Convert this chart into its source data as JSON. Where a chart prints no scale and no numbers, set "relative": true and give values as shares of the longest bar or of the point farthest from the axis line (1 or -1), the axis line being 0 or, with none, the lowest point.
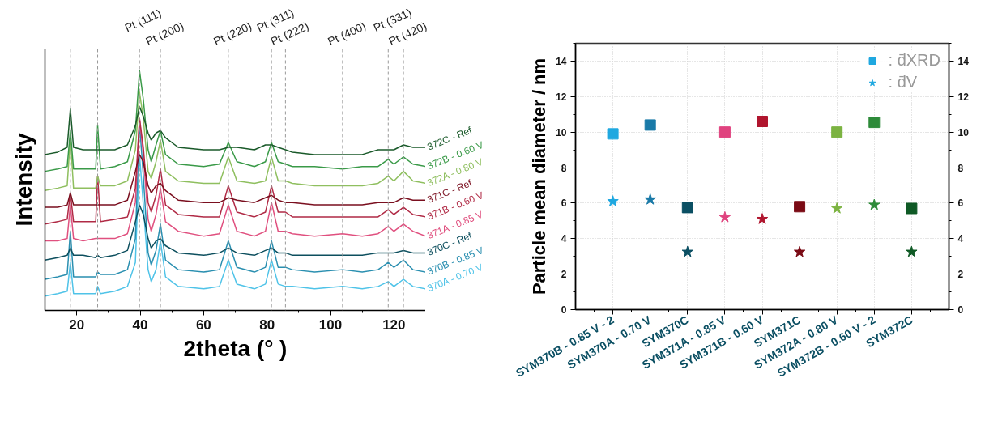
{
  "chart_data": [
    {
      "type": "line",
      "relative": true,
      "xlabel": "2theta (° )",
      "ylabel": "Intensity",
      "xlim": [
        10,
        130
      ],
      "xticks": [
        {
          "value": 10,
          "label": null
        },
        20,
        {
          "value": 30,
          "label": null
        },
        40,
        {
          "value": 50,
          "label": null
        },
        60,
        {
          "value": 70,
          "label": null
        },
        80,
        {
          "value": 90,
          "label": null
        },
        100,
        {
          "value": 110,
          "label": null
        },
        120,
        {
          "value": 130,
          "label": null
        }
      ],
      "grid": false,
      "x": [
        10,
        14,
        17,
        18,
        19,
        22,
        26,
        26.6,
        27.5,
        32,
        36,
        38.5,
        39.8,
        41,
        42.5,
        43.5,
        45,
        46.4,
        48,
        52,
        60,
        65,
        67.8,
        70.5,
        76,
        79.5,
        81.4,
        83.5,
        85.8,
        88,
        95,
        103.8,
        110,
        115,
        118.2,
        120,
        123,
        126,
        130
      ],
      "ref_lines": [
        {
          "axis": "x",
          "value": 18,
          "label": null,
          "color": "#999999",
          "line_style": "dashed"
        },
        {
          "axis": "x",
          "value": 26.6,
          "label": null,
          "color": "#999999",
          "line_style": "dashed"
        },
        {
          "axis": "x",
          "value": 39.8,
          "label": "Pt (111)",
          "color": "#999999",
          "line_style": "dashed"
        },
        {
          "axis": "x",
          "value": 46.4,
          "label": "Pt (200)",
          "color": "#999999",
          "line_style": "dashed"
        },
        {
          "axis": "x",
          "value": 67.8,
          "label": "Pt (220)",
          "color": "#999999",
          "line_style": "dashed"
        },
        {
          "axis": "x",
          "value": 81.4,
          "label": "Pt (311)",
          "color": "#999999",
          "line_style": "dashed"
        },
        {
          "axis": "x",
          "value": 85.8,
          "label": "Pt (222)",
          "color": "#999999",
          "line_style": "dashed"
        },
        {
          "axis": "x",
          "value": 103.8,
          "label": "Pt (400)",
          "color": "#999999",
          "line_style": "dashed"
        },
        {
          "axis": "x",
          "value": 118.2,
          "label": "Pt (331)",
          "color": "#999999",
          "line_style": "dashed"
        },
        {
          "axis": "x",
          "value": 123,
          "label": "Pt (420)",
          "color": "#999999",
          "line_style": "dashed"
        }
      ],
      "series": [
        {
          "name": "370A - 0.70 V",
          "color": "#4fc3e8",
          "values": [
            0.06,
            0.07,
            0.08,
            0.2,
            0.07,
            0.07,
            0.07,
            0.1,
            0.07,
            0.08,
            0.1,
            0.2,
            0.65,
            0.44,
            0.17,
            0.12,
            0.17,
            0.29,
            0.14,
            0.1,
            0.09,
            0.1,
            0.21,
            0.11,
            0.09,
            0.11,
            0.21,
            0.11,
            0.1,
            0.1,
            0.09,
            0.1,
            0.09,
            0.1,
            0.12,
            0.1,
            0.13,
            0.1,
            0.09
          ]
        },
        {
          "name": "370B - 0.85 V",
          "color": "#2a8fb0",
          "values": [
            0.13,
            0.14,
            0.15,
            0.33,
            0.14,
            0.14,
            0.14,
            0.16,
            0.15,
            0.15,
            0.17,
            0.3,
            0.78,
            0.56,
            0.24,
            0.19,
            0.25,
            0.36,
            0.21,
            0.17,
            0.16,
            0.17,
            0.29,
            0.18,
            0.16,
            0.18,
            0.29,
            0.18,
            0.18,
            0.17,
            0.16,
            0.17,
            0.16,
            0.17,
            0.2,
            0.18,
            0.21,
            0.17,
            0.16
          ]
        },
        {
          "name": "370C - Ref",
          "color": "#0d4f5e",
          "values": [
            0.21,
            0.22,
            0.23,
            0.26,
            0.23,
            0.23,
            0.22,
            0.23,
            0.22,
            0.23,
            0.25,
            0.37,
            0.44,
            0.4,
            0.3,
            0.26,
            0.29,
            0.3,
            0.27,
            0.24,
            0.23,
            0.24,
            0.26,
            0.24,
            0.23,
            0.25,
            0.26,
            0.24,
            0.24,
            0.23,
            0.23,
            0.23,
            0.23,
            0.24,
            0.24,
            0.24,
            0.25,
            0.24,
            0.24
          ]
        },
        {
          "name": "371A - 0.85 V",
          "color": "#e0507f",
          "values": [
            0.29,
            0.29,
            0.3,
            0.44,
            0.3,
            0.29,
            0.3,
            0.3,
            0.3,
            0.3,
            0.32,
            0.45,
            0.8,
            0.65,
            0.38,
            0.33,
            0.4,
            0.51,
            0.37,
            0.33,
            0.31,
            0.32,
            0.44,
            0.33,
            0.31,
            0.33,
            0.45,
            0.33,
            0.33,
            0.32,
            0.31,
            0.32,
            0.31,
            0.32,
            0.35,
            0.33,
            0.36,
            0.33,
            0.31
          ]
        },
        {
          "name": "371B - 0.60 V",
          "color": "#b02a45",
          "values": [
            0.36,
            0.37,
            0.38,
            0.49,
            0.37,
            0.37,
            0.37,
            0.56,
            0.37,
            0.38,
            0.39,
            0.51,
            0.8,
            0.68,
            0.45,
            0.41,
            0.48,
            0.59,
            0.44,
            0.4,
            0.39,
            0.39,
            0.52,
            0.41,
            0.39,
            0.41,
            0.52,
            0.41,
            0.41,
            0.39,
            0.39,
            0.39,
            0.39,
            0.39,
            0.42,
            0.4,
            0.43,
            0.4,
            0.39
          ]
        },
        {
          "name": "371C - Ref",
          "color": "#7a0f1f",
          "values": [
            0.43,
            0.43,
            0.44,
            0.49,
            0.44,
            0.44,
            0.44,
            0.44,
            0.44,
            0.44,
            0.46,
            0.58,
            0.65,
            0.62,
            0.52,
            0.49,
            0.52,
            0.53,
            0.5,
            0.46,
            0.45,
            0.45,
            0.47,
            0.46,
            0.45,
            0.47,
            0.48,
            0.46,
            0.45,
            0.45,
            0.44,
            0.44,
            0.44,
            0.45,
            0.45,
            0.45,
            0.47,
            0.46,
            0.46
          ]
        },
        {
          "name": "372A - 0.80 V",
          "color": "#8fbf5f",
          "values": [
            0.5,
            0.51,
            0.52,
            0.72,
            0.51,
            0.51,
            0.51,
            0.56,
            0.52,
            0.52,
            0.54,
            0.67,
            0.91,
            0.8,
            0.58,
            0.55,
            0.62,
            0.71,
            0.58,
            0.54,
            0.53,
            0.53,
            0.64,
            0.54,
            0.53,
            0.54,
            0.64,
            0.54,
            0.54,
            0.53,
            0.52,
            0.52,
            0.52,
            0.53,
            0.56,
            0.54,
            0.58,
            0.54,
            0.53
          ]
        },
        {
          "name": "372B - 0.60 V",
          "color": "#3a9a48",
          "values": [
            0.58,
            0.59,
            0.6,
            0.75,
            0.59,
            0.59,
            0.59,
            0.77,
            0.59,
            0.6,
            0.62,
            0.75,
            1.0,
            0.88,
            0.67,
            0.62,
            0.69,
            0.75,
            0.65,
            0.61,
            0.6,
            0.61,
            0.7,
            0.62,
            0.6,
            0.62,
            0.7,
            0.62,
            0.61,
            0.6,
            0.6,
            0.59,
            0.6,
            0.6,
            0.63,
            0.61,
            0.64,
            0.61,
            0.6
          ]
        },
        {
          "name": "372C - Ref",
          "color": "#1a5a2a",
          "values": [
            0.65,
            0.66,
            0.68,
            0.84,
            0.68,
            0.67,
            0.67,
            0.67,
            0.67,
            0.67,
            0.69,
            0.77,
            0.85,
            0.81,
            0.74,
            0.71,
            0.74,
            0.75,
            0.72,
            0.68,
            0.67,
            0.67,
            0.68,
            0.68,
            0.67,
            0.69,
            0.69,
            0.68,
            0.67,
            0.66,
            0.65,
            0.65,
            0.65,
            0.67,
            0.67,
            0.67,
            0.69,
            0.68,
            0.68
          ]
        }
      ]
    },
    {
      "type": "scatter",
      "ylabel": "Particle mean diameter / nm",
      "categories": [
        "SYM370B - 0.85 V - 2",
        "SYM370A - 0.70 V",
        "SYM370C",
        "SYM371A - 0.85 V",
        "SYM371B - 0.60 V",
        "SYM371C",
        "SYM372A - 0.80 V",
        "SYM372B - 0.60 V - 2",
        "SYM372C"
      ],
      "ylim": [
        0,
        15
      ],
      "yticks": [
        0,
        2,
        4,
        6,
        8,
        10,
        12,
        14
      ],
      "y2lim": [
        0,
        15
      ],
      "y2ticks": [
        0,
        2,
        4,
        6,
        8,
        10,
        12,
        14
      ],
      "grid": true,
      "legend": "top right",
      "series": [
        {
          "name": ": d̄XRD",
          "marker": "square",
          "colors": [
            "#1fa8e0",
            "#1a7aa8",
            "#0b4f63",
            "#e0437f",
            "#b0152e",
            "#7a0a14",
            "#7cb342",
            "#2e8b3a",
            "#0f5a25"
          ],
          "values": [
            9.9,
            10.4,
            5.75,
            10.0,
            10.6,
            5.8,
            10.0,
            10.55,
            5.7
          ]
        },
        {
          "name": ": d̄V",
          "marker": "star",
          "colors": [
            "#1fa8e0",
            "#1a7aa8",
            "#0b4f63",
            "#e0437f",
            "#b0152e",
            "#7a0a14",
            "#7cb342",
            "#2e8b3a",
            "#0f5a25"
          ],
          "values": [
            6.1,
            6.2,
            3.25,
            5.2,
            5.1,
            3.25,
            5.7,
            5.9,
            3.25
          ]
        }
      ]
    }
  ]
}
